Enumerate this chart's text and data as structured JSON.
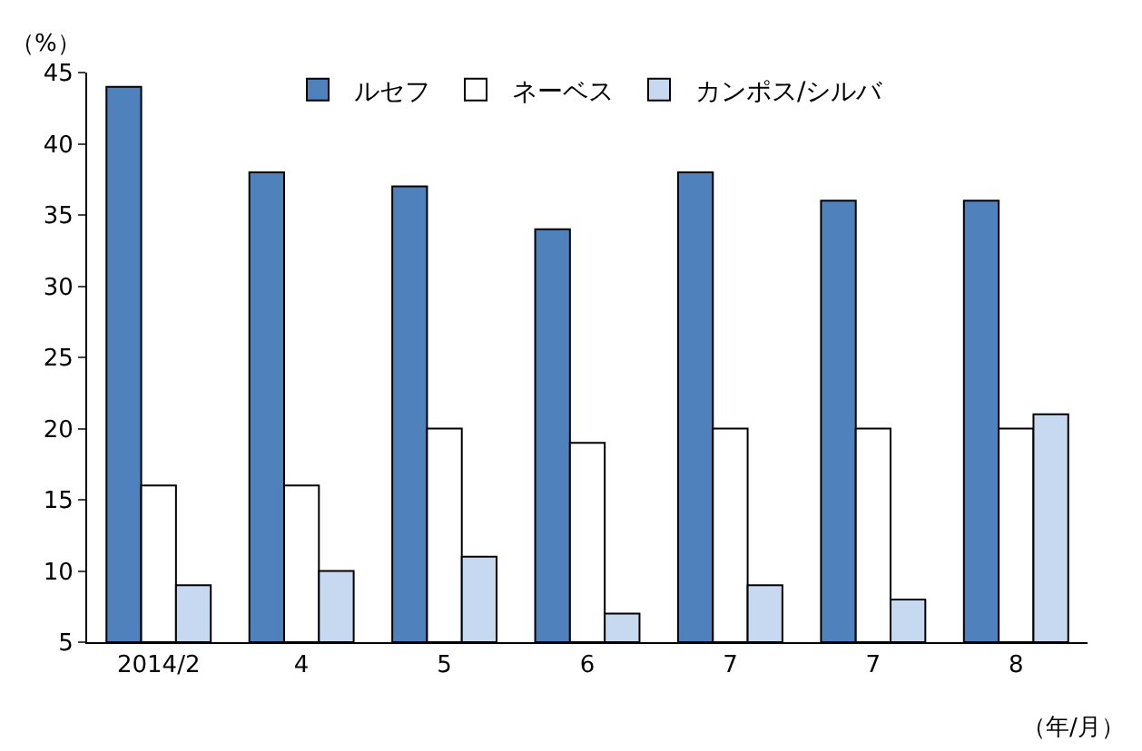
{
  "chart_data": {
    "type": "bar",
    "ylabel": "（%）",
    "xlabel": "（年/月）",
    "categories": [
      "2014/2",
      "4",
      "5",
      "6",
      "7",
      "7",
      "8"
    ],
    "series": [
      {
        "name": "ルセフ",
        "color": "#4f81bd",
        "values": [
          44,
          38,
          37,
          34,
          38,
          36,
          36
        ]
      },
      {
        "name": "ネーベス",
        "color": "#ffffff",
        "values": [
          16,
          16,
          20,
          19,
          20,
          20,
          20
        ]
      },
      {
        "name": "カンポス/シルバ",
        "color": "#c6d9f1",
        "values": [
          9,
          10,
          11,
          7,
          9,
          8,
          21
        ]
      }
    ],
    "ylim": [
      5,
      45
    ],
    "yticks": [
      5,
      10,
      15,
      20,
      25,
      30,
      35,
      40,
      45
    ],
    "legend": "top"
  }
}
